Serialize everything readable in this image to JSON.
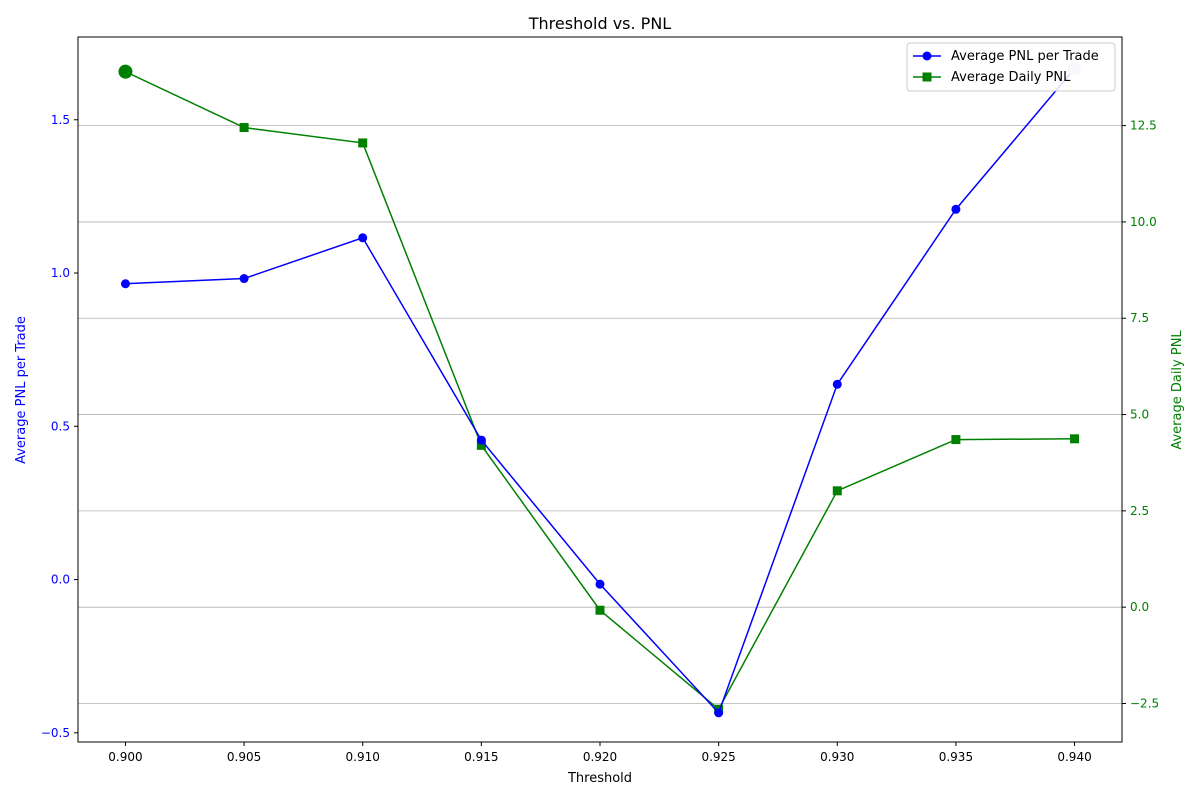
{
  "chart_data": {
    "type": "line",
    "title": "Threshold vs. PNL",
    "xlabel": "Threshold",
    "ylabel_left": "Average PNL per Trade",
    "ylabel_right": "Average Daily PNL",
    "x": [
      0.9,
      0.905,
      0.91,
      0.915,
      0.92,
      0.925,
      0.93,
      0.935,
      0.94
    ],
    "x_ticks": [
      "0.900",
      "0.905",
      "0.910",
      "0.915",
      "0.920",
      "0.925",
      "0.930",
      "0.935",
      "0.940"
    ],
    "xlim": [
      0.898,
      0.942
    ],
    "left_axis": {
      "ylim": [
        -0.53,
        1.77
      ],
      "ticks": [
        -0.5,
        0.0,
        0.5,
        1.0,
        1.5
      ],
      "tick_labels": [
        "−0.5",
        "0.0",
        "0.5",
        "1.0",
        "1.5"
      ],
      "color": "#0000ff"
    },
    "right_axis": {
      "ylim": [
        -3.5,
        14.8
      ],
      "ticks": [
        -2.5,
        0.0,
        2.5,
        5.0,
        7.5,
        10.0,
        12.5
      ],
      "tick_labels": [
        "−2.5",
        "0.0",
        "2.5",
        "5.0",
        "7.5",
        "10.0",
        "12.5"
      ],
      "color": "#008000"
    },
    "grid": "horizontal, right axis",
    "legend_position": "top-right",
    "series": [
      {
        "name": "Average PNL per Trade",
        "axis": "left",
        "marker": "circle",
        "color": "#0000ff",
        "highlight_color": "#ccccf0",
        "highlight_index": 8,
        "values": [
          0.965,
          0.982,
          1.115,
          0.455,
          -0.015,
          -0.435,
          0.637,
          1.208,
          1.667
        ]
      },
      {
        "name": "Average Daily PNL",
        "axis": "right",
        "marker": "square",
        "color": "#008000",
        "highlight_index": 0,
        "values": [
          13.9,
          12.45,
          12.05,
          4.2,
          -0.08,
          -2.65,
          3.02,
          4.35,
          4.37
        ]
      }
    ]
  }
}
